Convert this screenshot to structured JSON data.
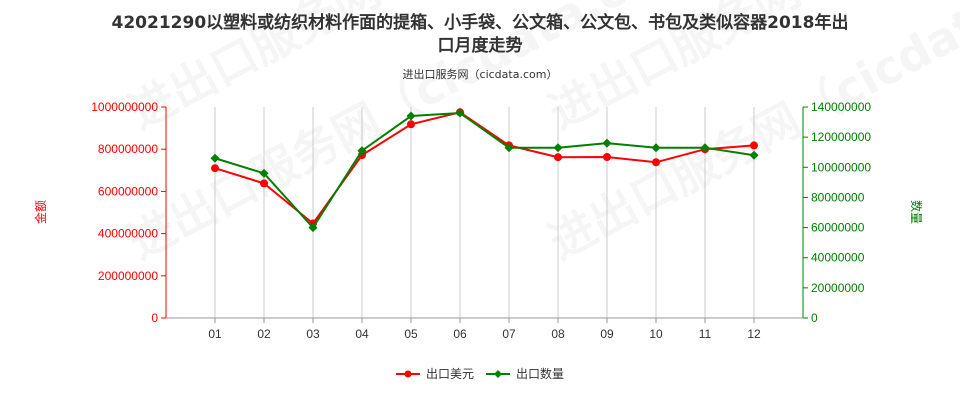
{
  "chart_data": {
    "type": "line",
    "title_line1": "42021290以塑料或纺织材料作面的提箱、小手袋、公文箱、公文包、书包及类似容器2018年出",
    "title_line2": "口月度走势",
    "subtitle": "进出口服务网（cicdata.com）",
    "categories": [
      "01",
      "02",
      "03",
      "04",
      "05",
      "06",
      "07",
      "08",
      "09",
      "10",
      "11",
      "12"
    ],
    "y_left": {
      "label": "金额",
      "ylim": [
        0,
        1000000000
      ],
      "ticks": [
        "0",
        "200000000",
        "400000000",
        "600000000",
        "800000000",
        "1000000000"
      ],
      "tick_values": [
        0,
        200000000,
        400000000,
        600000000,
        800000000,
        1000000000
      ]
    },
    "y_right": {
      "label": "数量",
      "ylim": [
        0,
        140000000
      ],
      "ticks": [
        "0",
        "20000000",
        "40000000",
        "60000000",
        "80000000",
        "100000000",
        "120000000",
        "140000000"
      ],
      "tick_values": [
        0,
        20000000,
        40000000,
        60000000,
        80000000,
        100000000,
        120000000,
        140000000
      ]
    },
    "series": [
      {
        "name": "出口美元",
        "axis": "left",
        "color": "#ff0000",
        "marker": "circle",
        "values": [
          710000000,
          638000000,
          448000000,
          772000000,
          918000000,
          975000000,
          818000000,
          762000000,
          763000000,
          738000000,
          800000000,
          818000000
        ]
      },
      {
        "name": "出口数量",
        "axis": "right",
        "color": "#008000",
        "marker": "diamond",
        "values": [
          106000000,
          96000000,
          60000000,
          111000000,
          134000000,
          136000000,
          113000000,
          113000000,
          116000000,
          113000000,
          113000000,
          108000000
        ]
      }
    ],
    "grid": "vertical",
    "legend_position": "bottom-center"
  }
}
